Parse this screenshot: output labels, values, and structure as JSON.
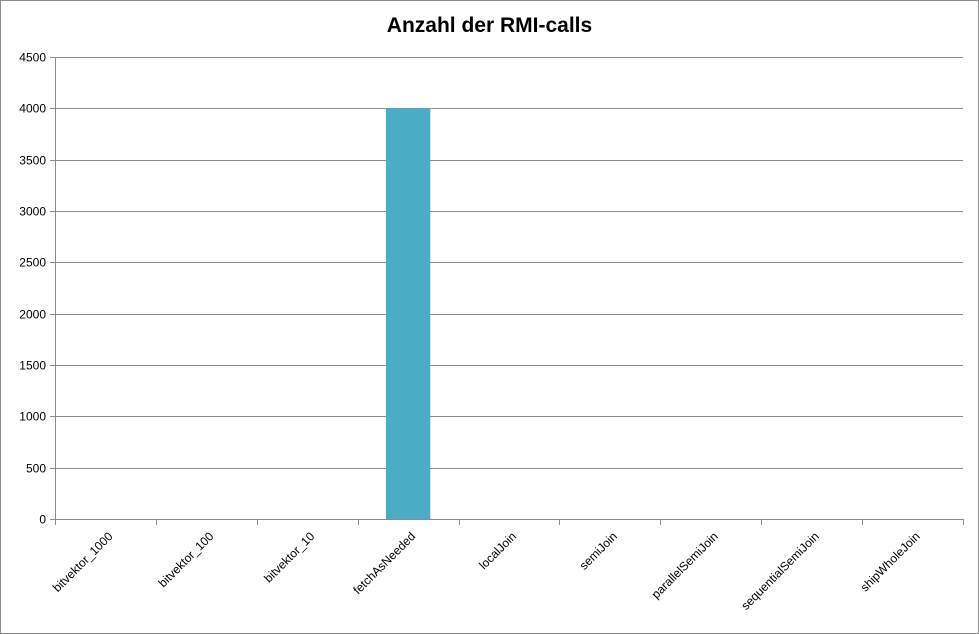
{
  "chart_data": {
    "type": "bar",
    "title": "Anzahl der RMI-calls",
    "categories": [
      "bitvektor_1000",
      "bitvektor_100",
      "bitvektor_10",
      "fetchAsNeeded",
      "localJoin",
      "semiJoin",
      "parallelSemiJoin",
      "sequentialSemiJoin",
      "shipWholeJoin"
    ],
    "values": [
      0,
      0,
      0,
      4000,
      0,
      0,
      0,
      0,
      0
    ],
    "ylim": [
      0,
      4500
    ],
    "yticks": [
      0,
      500,
      1000,
      1500,
      2000,
      2500,
      3000,
      3500,
      4000,
      4500
    ],
    "grid": true,
    "legend": "none",
    "bar_color": "#4bacc6",
    "grid_color": "#8c8c8c"
  }
}
